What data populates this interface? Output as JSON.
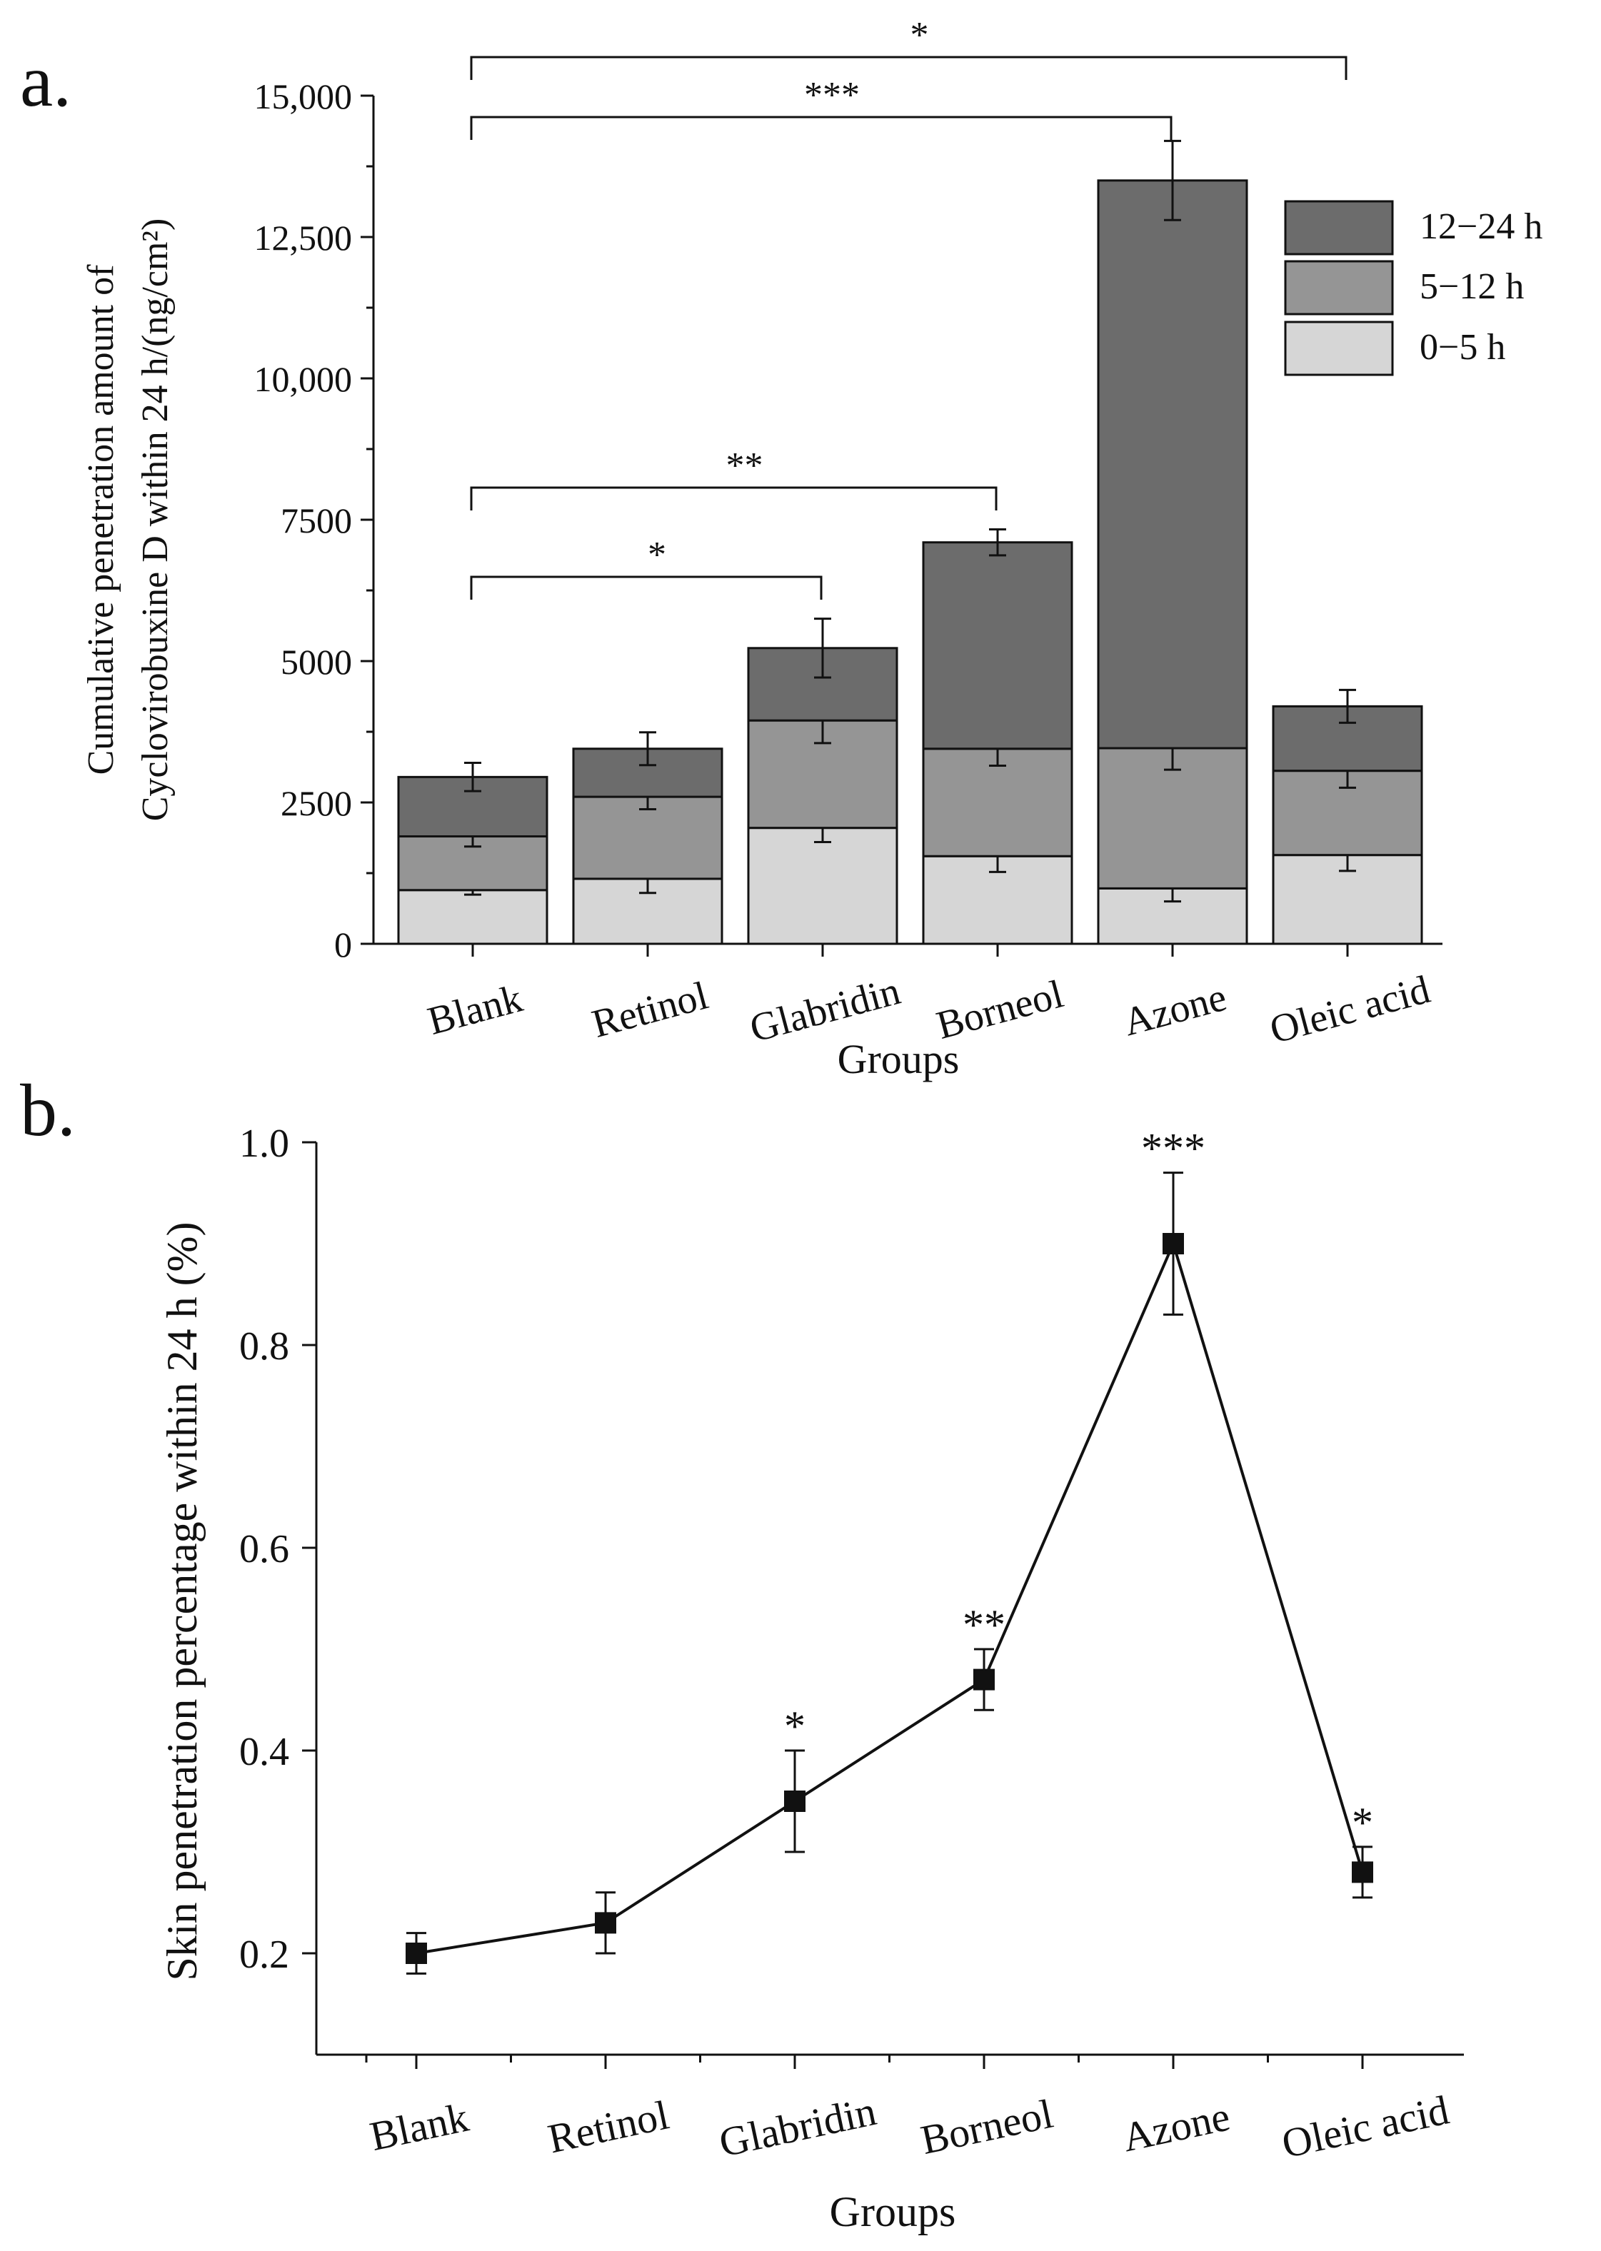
{
  "chart_data": [
    {
      "panel_label": "a.",
      "type": "bar",
      "stacked": true,
      "xlabel": "Groups",
      "ylabel_lines": [
        "Cumulative penetration amount of",
        "Cyclovirobuxine D within 24 h/(ng/cm²)"
      ],
      "ylim": [
        0,
        15000
      ],
      "yticks": [
        0,
        2500,
        5000,
        7500,
        10000,
        12500,
        15000
      ],
      "ytick_labels": [
        "0",
        "2500",
        "5000",
        "7500",
        "10,000",
        "12,500",
        "15,000"
      ],
      "categories": [
        "Blank",
        "Retinol",
        "Glabridin",
        "Borneol",
        "Azone",
        "Oleic acid"
      ],
      "legend_position": "top-right",
      "series": [
        {
          "name": "0−5 h",
          "color": "#d6d6d6",
          "values": [
            950,
            1150,
            2050,
            1550,
            980,
            1570
          ],
          "errors": [
            80,
            250,
            250,
            280,
            230,
            280
          ]
        },
        {
          "name": "5−12 h",
          "color": "#959595",
          "values": [
            950,
            1450,
            1900,
            1900,
            2480,
            1490
          ],
          "errors": [
            180,
            220,
            400,
            300,
            380,
            300
          ]
        },
        {
          "name": "12−24 h",
          "color": "#6c6c6c",
          "values": [
            1050,
            850,
            1280,
            3650,
            10040,
            1140
          ],
          "errors": [
            250,
            290,
            520,
            230,
            700,
            290
          ]
        }
      ],
      "legend_order": [
        "12−24 h",
        "5−12 h",
        "0−5 h"
      ],
      "significance": [
        {
          "from": "Blank",
          "to": "Glabridin",
          "label": "*"
        },
        {
          "from": "Blank",
          "to": "Borneol",
          "label": "**"
        },
        {
          "from": "Blank",
          "to": "Azone",
          "label": "***"
        },
        {
          "from": "Blank",
          "to": "Oleic acid",
          "label": "*"
        }
      ]
    },
    {
      "panel_label": "b.",
      "type": "line",
      "xlabel": "Groups",
      "ylabel": "Skin penetration percentage within 24 h (%)",
      "ylim": [
        0.1,
        1.0
      ],
      "yticks": [
        0.2,
        0.4,
        0.6,
        0.8,
        1.0
      ],
      "ytick_labels": [
        "0.2",
        "0.4",
        "0.6",
        "0.8",
        "1.0"
      ],
      "categories": [
        "Blank",
        "Retinol",
        "Glabridin",
        "Borneol",
        "Azone",
        "Oleic acid"
      ],
      "values": [
        0.2,
        0.23,
        0.35,
        0.47,
        0.9,
        0.28
      ],
      "errors": [
        0.02,
        0.03,
        0.05,
        0.03,
        0.07,
        0.025
      ],
      "significance": [
        "",
        "",
        "*",
        "**",
        "***",
        "*"
      ]
    }
  ]
}
